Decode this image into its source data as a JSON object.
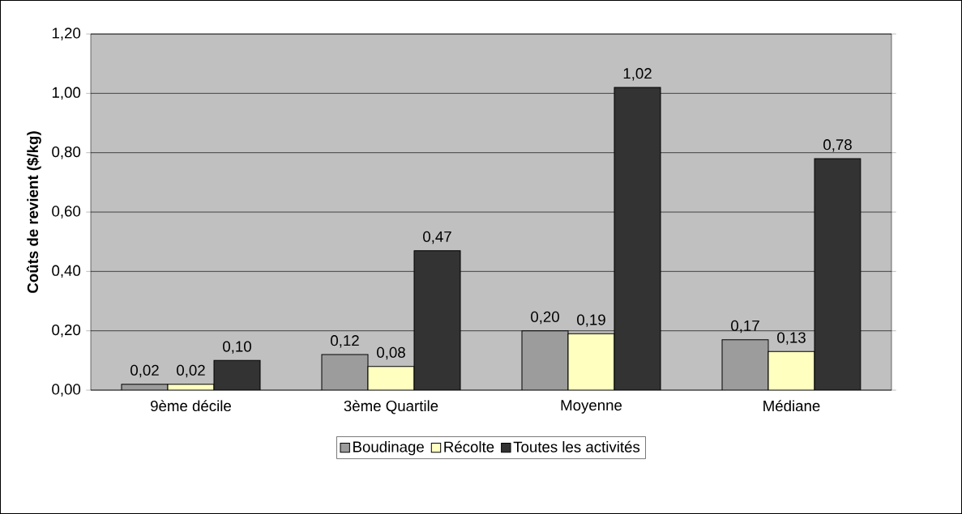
{
  "chart_data": {
    "type": "bar",
    "ylabel": "Coûts de revient ($/kg)",
    "categories": [
      "9ème décile",
      "3ème Quartile",
      "Moyenne",
      "Médiane"
    ],
    "series": [
      {
        "name": "Boudinage",
        "color": "#9c9c9c",
        "values": [
          0.02,
          0.12,
          0.2,
          0.17
        ],
        "value_labels": [
          "0,02",
          "0,12",
          "0,20",
          "0,17"
        ]
      },
      {
        "name": "Récolte",
        "color": "#ffffc0",
        "values": [
          0.02,
          0.08,
          0.19,
          0.13
        ],
        "value_labels": [
          "0,02",
          "0,08",
          "0,19",
          "0,13"
        ]
      },
      {
        "name": "Toutes les activités",
        "color": "#333333",
        "values": [
          0.1,
          0.47,
          1.02,
          0.78
        ],
        "value_labels": [
          "0,10",
          "0,47",
          "1,02",
          "0,78"
        ]
      }
    ],
    "ylim": [
      0,
      1.2
    ],
    "yticks": [
      {
        "value": 0,
        "label": "0,00"
      },
      {
        "value": 0.2,
        "label": "0,20"
      },
      {
        "value": 0.4,
        "label": "0,40"
      },
      {
        "value": 0.6,
        "label": "0,60"
      },
      {
        "value": 0.8,
        "label": "0,80"
      },
      {
        "value": 1.0,
        "label": "1,00"
      },
      {
        "value": 1.2,
        "label": "1,20"
      }
    ],
    "grid": "y",
    "legend": "bottom"
  }
}
